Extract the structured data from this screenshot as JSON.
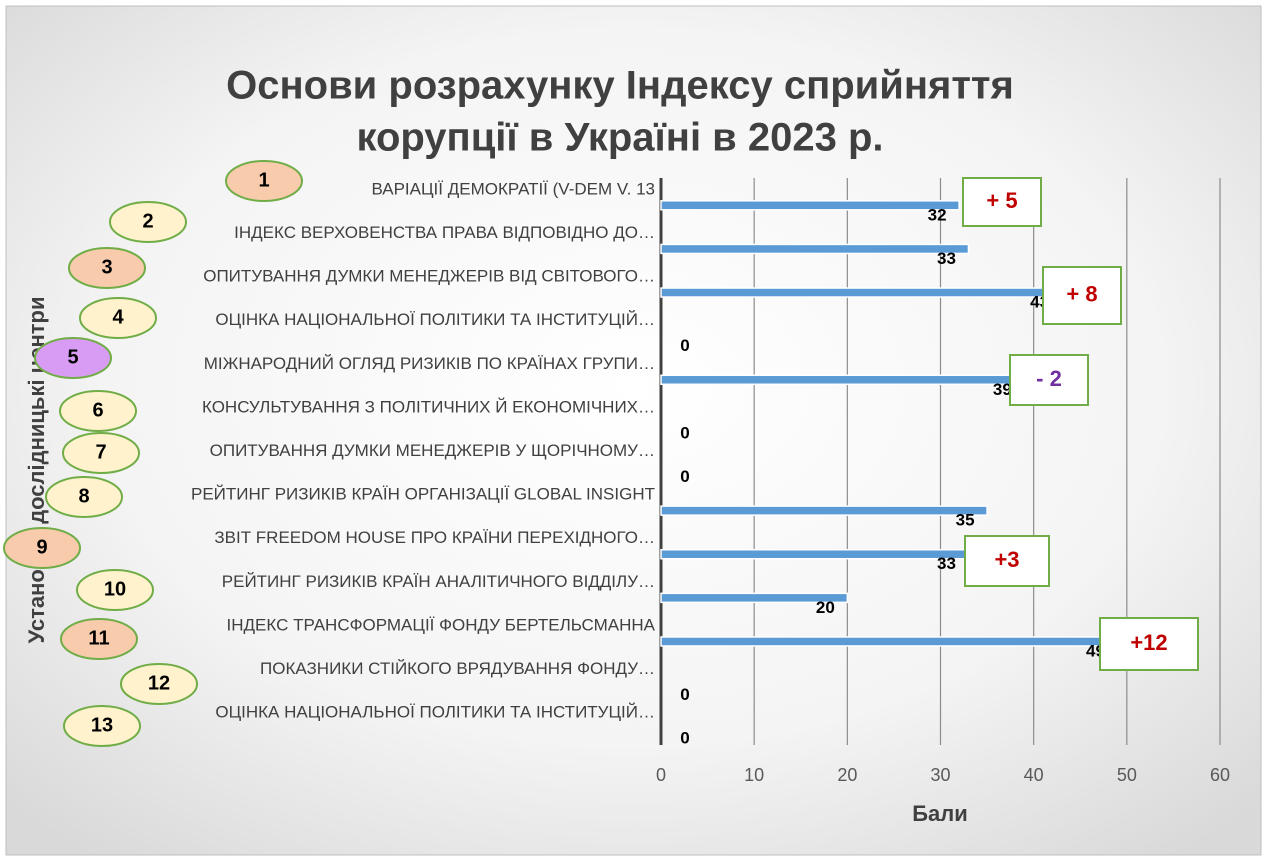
{
  "chart_data": {
    "type": "bar",
    "orientation": "horizontal",
    "title": [
      "Основи розрахунку Індексу сприйняття",
      "корупції в Україні в 2023 р."
    ],
    "categories": [
      "ВАРІАЦІЇ ДЕМОКРАТІЇ (V-DEM V. 13",
      "ІНДЕКС ВЕРХОВЕНСТВА ПРАВА ВІДПОВІДНО ДО…",
      "ОПИТУВАННЯ ДУМКИ МЕНЕДЖЕРІВ ВІД СВІТОВОГО…",
      "ОЦІНКА НАЦІОНАЛЬНОЇ ПОЛІТИКИ ТА ІНСТИТУЦІЙ…",
      "МІЖНАРОДНИЙ ОГЛЯД РИЗИКІВ ПО КРАЇНАХ ГРУПИ…",
      "КОНСУЛЬТУВАННЯ З ПОЛІТИЧНИХ Й ЕКОНОМІЧНИХ…",
      "ОПИТУВАННЯ ДУМКИ МЕНЕДЖЕРІВ У ЩОРІЧНОМУ…",
      "РЕЙТИНГ РИЗИКІВ КРАЇН ОРГАНІЗАЦІЇ GLOBAL INSIGHT",
      "ЗВІТ FREEDOM HOUSE ПРО КРАЇНИ ПЕРЕХІДНОГО…",
      "РЕЙТИНГ РИЗИКІВ КРАЇН АНАЛІТИЧНОГО ВІДДІЛУ…",
      "ІНДЕКС ТРАНСФОРМАЦІЇ ФОНДУ БЕРТЕЛЬСМАННА",
      "ПОКАЗНИКИ СТІЙКОГО ВРЯДУВАННЯ ФОНДУ…",
      "ОЦІНКА НАЦІОНАЛЬНОЇ ПОЛІТИКИ ТА ІНСТИТУЦІЙ…"
    ],
    "values": [
      32,
      33,
      43,
      0,
      39,
      0,
      0,
      35,
      33,
      20,
      49,
      0,
      0
    ],
    "color": "#5b9bd5",
    "xlim": [
      0,
      60
    ],
    "xticks": [
      0,
      10,
      20,
      30,
      40,
      50,
      60
    ],
    "grid": true,
    "xlabel": "Бали",
    "ylabel": "Установи і дослідницькі центри",
    "annotations": [
      {
        "text": "+ 5",
        "color": "#c00000"
      },
      {
        "text": "+ 8",
        "color": "#c00000"
      },
      {
        "text": "- 2",
        "color": "#7030a0"
      },
      {
        "text": "+3",
        "color": "#c00000"
      },
      {
        "text": "+12",
        "color": "#c00000"
      }
    ],
    "badges": [
      {
        "text": "1",
        "color": "#f8cbad"
      },
      {
        "text": "2",
        "color": "#fff2cc"
      },
      {
        "text": "3",
        "color": "#f8cbad"
      },
      {
        "text": "4",
        "color": "#fff2cc"
      },
      {
        "text": "5",
        "color": "#d99cf5"
      },
      {
        "text": "6",
        "color": "#fff2cc"
      },
      {
        "text": "7",
        "color": "#fff2cc"
      },
      {
        "text": "8",
        "color": "#fff2cc"
      },
      {
        "text": "9",
        "color": "#f8cbad"
      },
      {
        "text": "10",
        "color": "#fff2cc"
      },
      {
        "text": "11",
        "color": "#f8cbad"
      },
      {
        "text": "12",
        "color": "#fff2cc"
      },
      {
        "text": "13",
        "color": "#fff2cc"
      }
    ]
  }
}
